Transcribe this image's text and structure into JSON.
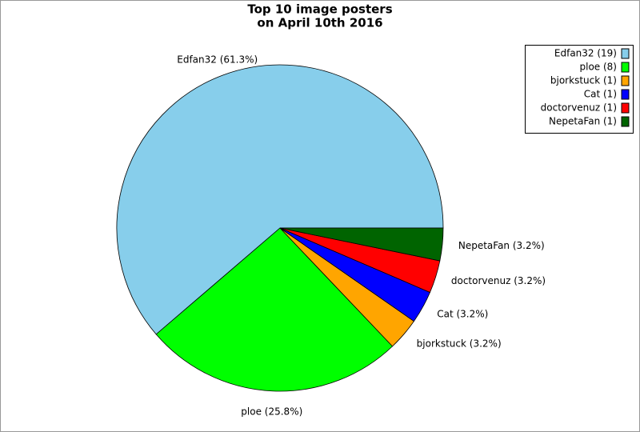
{
  "chart_data": {
    "type": "pie",
    "title": "Top 10 image posters",
    "subtitle": "on April 10th 2016",
    "categories": [
      "Edfan32",
      "ploe",
      "bjorkstuck",
      "Cat",
      "doctorvenuz",
      "NepetaFan"
    ],
    "values": [
      19,
      8,
      1,
      1,
      1,
      1
    ],
    "value_labels": [
      "Edfan32 (19)",
      "ploe (8)",
      "bjorkstuck (1)",
      "Cat (1)",
      "doctorvenuz (1)",
      "NepetaFan (1)"
    ],
    "percents": [
      61.3,
      25.8,
      3.2,
      3.2,
      3.2,
      3.2
    ],
    "percent_labels": [
      "Edfan32 (61.3%)",
      "ploe (25.8%)",
      "bjorkstuck (3.2%)",
      "Cat (3.2%)",
      "doctorvenuz (3.2%)",
      "NepetaFan (3.2%)"
    ],
    "colors": [
      "#87ceeb",
      "#00ff00",
      "#ffa500",
      "#0000ff",
      "#ff0000",
      "#006400"
    ],
    "legend": "top-right"
  }
}
